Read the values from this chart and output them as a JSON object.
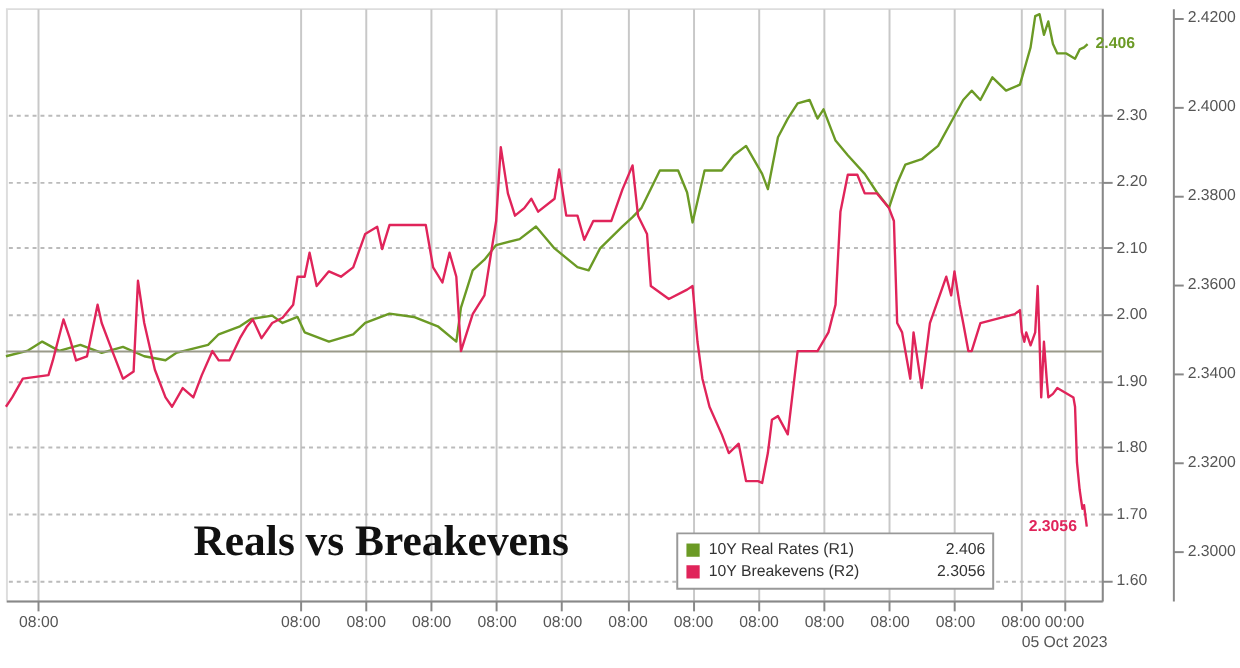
{
  "chart_data": {
    "type": "line",
    "title": "Reals vs Breakevens",
    "xlim": [
      "2023-09-18T20:18",
      "2023-10-05T14:00"
    ],
    "xticks": [
      {
        "value": "2023-09-19T08:00",
        "label": "08:00"
      },
      {
        "value": "2023-09-23T08:00",
        "label": "08:00"
      },
      {
        "value": "2023-09-24T08:00",
        "label": "08:00"
      },
      {
        "value": "2023-09-25T08:00",
        "label": "08:00"
      },
      {
        "value": "2023-09-26T08:00",
        "label": "08:00"
      },
      {
        "value": "2023-09-27T08:00",
        "label": "08:00"
      },
      {
        "value": "2023-09-28T08:00",
        "label": "08:00"
      },
      {
        "value": "2023-09-29T08:00",
        "label": "08:00"
      },
      {
        "value": "2023-09-30T08:00",
        "label": "08:00"
      },
      {
        "value": "2023-10-01T08:00",
        "label": "08:00"
      },
      {
        "value": "2023-10-02T08:00",
        "label": "08:00"
      },
      {
        "value": "2023-10-03T08:00",
        "label": "08:00"
      },
      {
        "value": "2023-10-04T08:00",
        "label": "08:00"
      },
      {
        "value": "2023-10-05T00:00",
        "label": "00:00\n05 Oct 2023"
      }
    ],
    "ylim": [
      1.57,
      2.46
    ],
    "yticks": [
      {
        "value": 1.6,
        "label": "1.60"
      },
      {
        "value": 1.7,
        "label": "1.70"
      },
      {
        "value": 1.8,
        "label": "1.80"
      },
      {
        "value": 1.9,
        "label": "1.90"
      },
      {
        "value": 2.0,
        "label": "2.00"
      },
      {
        "value": 2.1,
        "label": "2.10"
      },
      {
        "value": 2.2,
        "label": "2.20"
      },
      {
        "value": 2.3,
        "label": "2.30"
      }
    ],
    "y2lim": [
      2.289,
      2.422
    ],
    "y2ticks": [
      {
        "value": 2.3,
        "label": "2.3000"
      },
      {
        "value": 2.32,
        "label": "2.3200"
      },
      {
        "value": 2.34,
        "label": "2.3400"
      },
      {
        "value": 2.36,
        "label": "2.3600"
      },
      {
        "value": 2.38,
        "label": "2.3800"
      },
      {
        "value": 2.4,
        "label": "2.4000"
      },
      {
        "value": 2.42,
        "label": "2.4200"
      }
    ],
    "grid": true,
    "legend": "bottom right",
    "marker": "none",
    "line_style": "solid",
    "ref_lines": [
      {
        "axis": "y",
        "value": 1.944,
        "label": null,
        "color": "#9a9a8a"
      }
    ],
    "series": [
      {
        "name": "10Y Real Rates (R1)",
        "color": "#6b9a25",
        "axis": "y",
        "x": [
          "2023-09-18T20:18",
          "2023-09-19T04:06",
          "2023-09-19T09:36",
          "2023-09-19T15:48",
          "2023-09-19T23:36",
          "2023-09-20T07:24",
          "2023-09-20T15:12",
          "2023-09-20T23:00",
          "2023-09-21T06:48",
          "2023-09-21T10:42",
          "2023-09-21T22:24",
          "2023-09-22T02:18",
          "2023-09-22T10:06",
          "2023-09-22T14:06",
          "2023-09-22T21:54",
          "2023-09-23T01:42",
          "2023-09-23T07:12",
          "2023-09-23T09:48",
          "2023-09-23T18:42",
          "2023-09-24T03:36",
          "2023-09-24T08:00",
          "2023-09-24T16:54",
          "2023-09-25T01:48",
          "2023-09-25T10:36",
          "2023-09-25T17:24",
          "2023-09-25T19:06",
          "2023-09-25T23:24",
          "2023-09-26T03:42",
          "2023-09-26T08:00",
          "2023-09-26T16:36",
          "2023-09-26T22:36",
          "2023-09-27T05:24",
          "2023-09-27T13:48",
          "2023-09-27T17:54",
          "2023-09-27T22:06",
          "2023-09-28T06:18",
          "2023-09-28T10:00",
          "2023-09-28T13:18",
          "2023-09-28T20:00",
          "2023-09-29T02:42",
          "2023-09-29T06:00",
          "2023-09-29T08:00",
          "2023-09-29T12:24",
          "2023-09-29T18:42",
          "2023-09-29T23:06",
          "2023-09-30T03:36",
          "2023-09-30T09:30",
          "2023-09-30T11:36",
          "2023-09-30T15:18",
          "2023-09-30T18:54",
          "2023-09-30T22:30",
          "2023-10-01T02:54",
          "2023-10-01T05:48",
          "2023-10-01T08:00",
          "2023-10-01T12:24",
          "2023-10-01T16:54",
          "2023-10-01T23:06",
          "2023-10-02T03:36",
          "2023-10-02T08:00",
          "2023-10-02T11:00",
          "2023-10-02T14:00",
          "2023-10-02T20:00",
          "2023-10-03T02:00",
          "2023-10-03T06:48",
          "2023-10-03T11:12",
          "2023-10-03T14:18",
          "2023-10-03T17:30",
          "2023-10-03T21:54",
          "2023-10-04T02:54",
          "2023-10-04T08:00",
          "2023-10-04T10:18",
          "2023-10-04T11:54",
          "2023-10-04T13:36",
          "2023-10-04T15:12",
          "2023-10-04T16:48",
          "2023-10-04T18:24",
          "2023-10-04T20:06",
          "2023-10-04T21:42",
          "2023-10-05T01:00",
          "2023-10-05T04:12",
          "2023-10-05T05:54",
          "2023-10-05T07:30",
          "2023-10-05T08:48"
        ],
        "values": [
          1.937,
          1.945,
          1.959,
          1.945,
          1.954,
          1.942,
          1.951,
          1.937,
          1.931,
          1.942,
          1.954,
          1.97,
          1.982,
          1.993,
          1.998,
          1.987,
          1.996,
          1.973,
          1.959,
          1.97,
          1.987,
          2.001,
          1.996,
          1.982,
          1.959,
          2.01,
          2.066,
          2.082,
          2.104,
          2.113,
          2.132,
          2.099,
          2.071,
          2.066,
          2.099,
          2.132,
          2.146,
          2.16,
          2.216,
          2.216,
          2.183,
          2.138,
          2.216,
          2.216,
          2.239,
          2.253,
          2.211,
          2.188,
          2.266,
          2.294,
          2.317,
          2.322,
          2.294,
          2.308,
          2.261,
          2.239,
          2.211,
          2.183,
          2.16,
          2.197,
          2.225,
          2.233,
          2.253,
          2.289,
          2.322,
          2.336,
          2.322,
          2.356,
          2.336,
          2.345,
          2.378,
          2.401,
          2.448,
          2.451,
          2.42,
          2.44,
          2.406,
          2.392,
          2.392,
          2.384,
          2.398,
          2.401,
          2.406
        ],
        "value_labels": [
          null,
          null,
          null,
          null,
          null,
          null,
          null,
          null,
          null,
          null,
          null,
          null,
          null,
          null,
          null,
          null,
          null,
          null,
          null,
          null,
          null,
          null,
          null,
          null,
          null,
          null,
          null,
          null,
          null,
          null,
          null,
          null,
          null,
          null,
          null,
          null,
          null,
          null,
          null,
          null,
          null,
          null,
          null,
          null,
          null,
          null,
          null,
          null,
          null,
          null,
          null,
          null,
          null,
          null,
          null,
          null,
          null,
          null,
          null,
          null,
          null,
          null,
          null,
          null,
          null,
          null,
          null,
          null,
          null,
          null,
          null,
          null,
          null,
          null,
          null,
          null,
          null,
          null,
          null,
          null,
          null,
          null,
          "2.406"
        ]
      },
      {
        "name": "10Y Breakevens (R2)",
        "color": "#e0245a",
        "axis": "y2",
        "x": [
          "2023-09-18T20:18",
          "2023-09-18T22:36",
          "2023-09-19T02:30",
          "2023-09-19T11:54",
          "2023-09-19T13:30",
          "2023-09-19T17:24",
          "2023-09-19T19:42",
          "2023-09-19T22:00",
          "2023-09-20T02:00",
          "2023-09-20T05:54",
          "2023-09-20T07:24",
          "2023-09-20T11:18",
          "2023-09-20T15:12",
          "2023-09-20T19:06",
          "2023-09-20T20:42",
          "2023-09-20T23:00",
          "2023-09-21T02:54",
          "2023-09-21T06:48",
          "2023-09-21T09:12",
          "2023-09-21T13:06",
          "2023-09-21T17:00",
          "2023-09-21T20:06",
          "2023-09-22T00:00",
          "2023-09-22T02:18",
          "2023-09-22T06:12",
          "2023-09-22T10:06",
          "2023-09-22T12:30",
          "2023-09-22T14:48",
          "2023-09-22T18:00",
          "2023-09-22T21:54",
          "2023-09-23T01:42",
          "2023-09-23T05:36",
          "2023-09-23T07:12",
          "2023-09-23T09:48",
          "2023-09-23T11:36",
          "2023-09-23T14:12",
          "2023-09-23T18:42",
          "2023-09-23T23:06",
          "2023-09-24T03:36",
          "2023-09-24T08:00",
          "2023-09-24T12:24",
          "2023-09-24T14:12",
          "2023-09-24T16:54",
          "2023-09-24T21:18",
          "2023-09-25T06:12",
          "2023-09-25T08:54",
          "2023-09-25T12:18",
          "2023-09-25T14:54",
          "2023-09-25T17:24",
          "2023-09-25T19:06",
          "2023-09-25T23:24",
          "2023-09-26T03:42",
          "2023-09-26T08:00",
          "2023-09-26T09:42",
          "2023-09-26T12:18",
          "2023-09-26T14:54",
          "2023-09-26T18:18",
          "2023-09-26T20:54",
          "2023-09-26T23:24",
          "2023-09-27T05:24",
          "2023-09-27T07:06",
          "2023-09-27T09:42",
          "2023-09-27T13:48",
          "2023-09-27T16:18",
          "2023-09-27T19:36",
          "2023-09-28T02:12",
          "2023-09-28T06:18",
          "2023-09-28T10:00",
          "2023-09-28T12:00",
          "2023-09-28T15:18",
          "2023-09-28T16:42",
          "2023-09-28T23:18",
          "2023-09-29T06:00",
          "2023-09-29T08:00",
          "2023-09-29T09:48",
          "2023-09-29T11:36",
          "2023-09-29T14:12",
          "2023-09-29T18:42",
          "2023-09-29T21:18",
          "2023-09-30T00:54",
          "2023-09-30T03:36",
          "2023-09-30T08:00",
          "2023-09-30T09:30",
          "2023-09-30T11:36",
          "2023-09-30T13:06",
          "2023-09-30T15:18",
          "2023-09-30T18:54",
          "2023-09-30T22:30",
          "2023-10-01T05:48",
          "2023-10-01T09:48",
          "2023-10-01T12:24",
          "2023-10-01T14:12",
          "2023-10-01T16:54",
          "2023-10-01T20:24",
          "2023-10-01T23:06",
          "2023-10-02T03:36",
          "2023-10-02T08:00",
          "2023-10-02T09:48",
          "2023-10-02T11:00",
          "2023-10-02T12:48",
          "2023-10-02T14:00",
          "2023-10-02T15:48",
          "2023-10-02T17:00",
          "2023-10-02T20:00",
          "2023-10-02T23:00",
          "2023-10-03T05:00",
          "2023-10-03T06:48",
          "2023-10-03T08:00",
          "2023-10-03T09:54",
          "2023-10-03T11:12",
          "2023-10-03T13:06",
          "2023-10-03T14:18",
          "2023-10-03T17:30",
          "2023-10-04T06:06",
          "2023-10-04T08:00",
          "2023-10-04T08:42",
          "2023-10-04T09:36",
          "2023-10-04T10:18",
          "2023-10-04T11:54",
          "2023-10-04T13:36",
          "2023-10-04T14:30",
          "2023-10-04T15:12",
          "2023-10-04T15:48",
          "2023-10-04T16:48",
          "2023-10-04T17:48",
          "2023-10-04T18:24",
          "2023-10-04T20:06",
          "2023-10-04T21:42",
          "2023-10-05T03:36",
          "2023-10-05T04:12",
          "2023-10-05T04:54",
          "2023-10-05T05:54",
          "2023-10-05T06:54",
          "2023-10-05T07:30",
          "2023-10-05T08:30"
        ],
        "values": [
          2.3325,
          2.3346,
          2.3388,
          2.3396,
          2.3429,
          2.3521,
          2.3479,
          2.3429,
          2.3438,
          2.3554,
          2.3513,
          2.345,
          2.3388,
          2.3404,
          2.3608,
          2.3513,
          2.3408,
          2.3346,
          2.3325,
          2.3367,
          2.3346,
          2.3396,
          2.345,
          2.3429,
          2.3429,
          2.3479,
          2.3504,
          2.3521,
          2.3479,
          2.3513,
          2.3525,
          2.3554,
          2.3617,
          2.3617,
          2.3671,
          2.3596,
          2.3629,
          2.3617,
          2.3638,
          2.3713,
          2.3729,
          2.3679,
          2.3733,
          2.3733,
          2.3733,
          2.3638,
          2.3604,
          2.3671,
          2.3617,
          2.345,
          2.3533,
          2.3575,
          2.3742,
          2.3908,
          2.3804,
          2.3754,
          2.3771,
          2.3792,
          2.3763,
          2.3792,
          2.3858,
          2.3754,
          2.3754,
          2.37,
          2.3742,
          2.3742,
          2.3813,
          2.3867,
          2.3754,
          2.3713,
          2.3596,
          2.3567,
          2.3588,
          2.3596,
          2.3471,
          2.3388,
          2.3325,
          2.3263,
          2.3221,
          2.3242,
          2.3158,
          2.3158,
          2.3154,
          2.3221,
          2.3296,
          2.3304,
          2.3263,
          2.345,
          2.345,
          2.3492,
          2.3554,
          2.3763,
          2.3846,
          2.3846,
          2.3804,
          2.3804,
          2.3771,
          2.3742,
          2.3513,
          2.3492,
          2.345,
          2.3388,
          2.3492,
          2.3367,
          2.3513,
          2.3617,
          2.3575,
          2.3629,
          2.3554,
          2.3513,
          2.345,
          2.345,
          2.3513,
          2.3533,
          2.3542,
          2.3492,
          2.3471,
          2.3492,
          2.3463,
          2.3492,
          2.3596,
          2.3471,
          2.3346,
          2.3471,
          2.3388,
          2.3346,
          2.3354,
          2.3367,
          2.3346,
          2.3325,
          2.32,
          2.3138,
          2.3096,
          2.3104,
          2.3056
        ],
        "value_labels": [
          null,
          null,
          null,
          null,
          null,
          null,
          null,
          null,
          null,
          null,
          null,
          null,
          null,
          null,
          null,
          null,
          null,
          null,
          null,
          null,
          null,
          null,
          null,
          null,
          null,
          null,
          null,
          null,
          null,
          null,
          null,
          null,
          null,
          null,
          null,
          null,
          null,
          null,
          null,
          null,
          null,
          null,
          null,
          null,
          null,
          null,
          null,
          null,
          null,
          null,
          null,
          null,
          null,
          null,
          null,
          null,
          null,
          null,
          null,
          null,
          null,
          null,
          null,
          null,
          null,
          null,
          null,
          null,
          null,
          null,
          null,
          null,
          null,
          null,
          null,
          null,
          null,
          null,
          null,
          null,
          null,
          null,
          null,
          null,
          null,
          null,
          null,
          null,
          null,
          null,
          null,
          null,
          null,
          null,
          null,
          null,
          null,
          null,
          null,
          null,
          null,
          null,
          null,
          null,
          null,
          null,
          null,
          null,
          null,
          null,
          null,
          null,
          null,
          null,
          null,
          null,
          null,
          null,
          null,
          null,
          null,
          null,
          null,
          null,
          null,
          null,
          null,
          null,
          null,
          null,
          null,
          null,
          null,
          null,
          "2.3056"
        ]
      }
    ]
  }
}
